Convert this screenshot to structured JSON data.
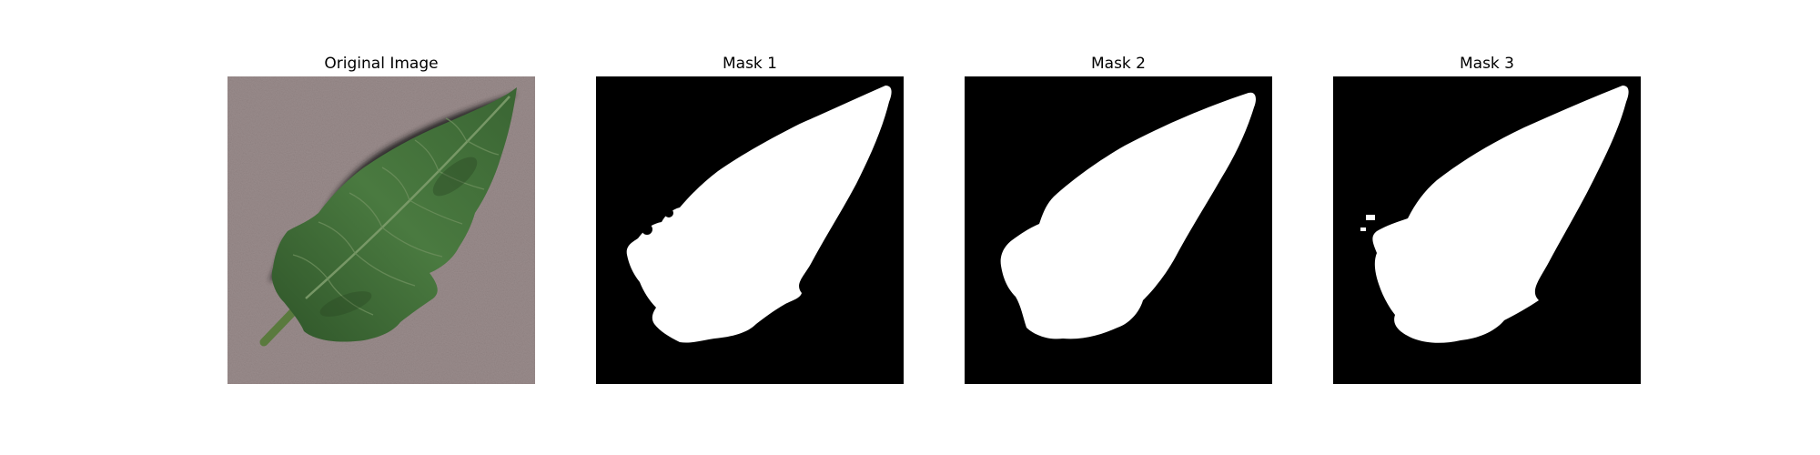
{
  "figure": {
    "panels": [
      {
        "title": "Original Image",
        "kind": "photo",
        "subject": "leaf-photo"
      },
      {
        "title": "Mask 1",
        "kind": "mask",
        "subject": "leaf-mask"
      },
      {
        "title": "Mask 2",
        "kind": "mask",
        "subject": "leaf-mask"
      },
      {
        "title": "Mask 3",
        "kind": "mask",
        "subject": "leaf-mask"
      }
    ],
    "colors": {
      "background": "#ffffff",
      "mask_background": "#000000",
      "mask_foreground": "#ffffff",
      "photo_background": "#9a8c8c",
      "leaf_green": "#3f6a36",
      "leaf_dark": "#24401f",
      "leaf_vein": "#7d9c6c",
      "shadow": "#1e1a1a"
    }
  }
}
